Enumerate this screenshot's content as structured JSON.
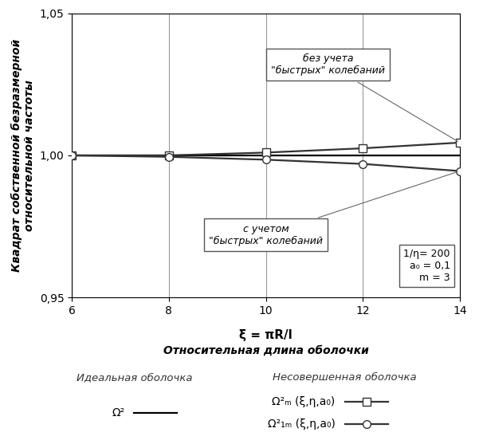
{
  "chart_data": {
    "type": "line",
    "ylabel": "Квадрат собственной безразмерной\nотносительной частоты",
    "x_symbol": "ξ = πR/l",
    "xlabel": "Относительная длина оболочки",
    "x": [
      6,
      8,
      10,
      12,
      14
    ],
    "xlim": [
      6,
      14
    ],
    "xticks": [
      6,
      8,
      10,
      12,
      14
    ],
    "ylim": [
      0.95,
      1.05
    ],
    "yticks": [
      {
        "value": 0.95,
        "label": "0,95"
      },
      {
        "value": 1.0,
        "label": "1,00"
      },
      {
        "value": 1.05,
        "label": "1,05"
      }
    ],
    "grid": true,
    "legend_groups": [
      "Идеальная оболочка",
      "Несовершенная оболочка"
    ],
    "series": [
      {
        "name": "Ω²",
        "group": "Идеальная оболочка",
        "color": "#000000",
        "marker": "none",
        "line_style": "solid",
        "values": [
          1.0,
          1.0,
          1.0,
          1.0,
          1.0
        ]
      },
      {
        "name": "Ω²ₘ (ξ,η,a₀)",
        "group": "Несовершенная оболочка",
        "color": "#333333",
        "marker": "square",
        "line_style": "solid",
        "values": [
          1.0,
          1.0,
          1.001,
          1.0025,
          1.0045
        ]
      },
      {
        "name": "Ω²₁ₘ (ξ,η,a₀)",
        "group": "Несовершенная оболочка",
        "color": "#333333",
        "marker": "circle",
        "line_style": "solid",
        "values": [
          1.0,
          0.9995,
          0.9985,
          0.997,
          0.9945
        ]
      }
    ],
    "annotations": [
      {
        "text": "без учета\n\"быстрых\" колебаний",
        "target": "Ω²ₘ (ξ,η,a₀)"
      },
      {
        "text": "с учетом\n\"быстрых\" колебаний",
        "target": "Ω²₁ₘ (ξ,η,a₀)"
      }
    ],
    "parameters": [
      "1/η= 200",
      "a₀ = 0,1",
      "m = 3"
    ]
  }
}
